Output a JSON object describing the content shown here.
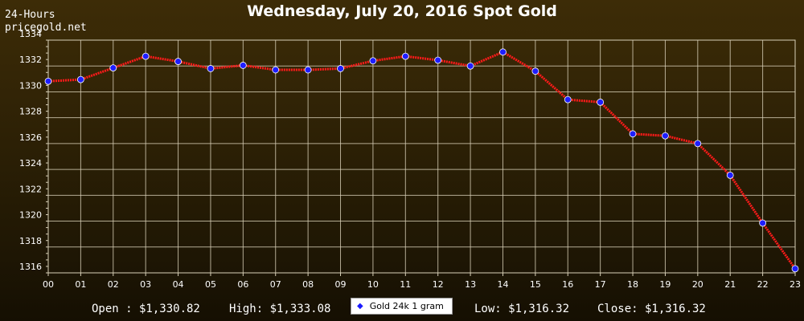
{
  "header": {
    "left_line1": "24-Hours",
    "left_line2": "pricegold.net"
  },
  "summary": {
    "open": "Open : $1,330.82",
    "high": "High: $1,333.08",
    "low": "Low: $1,316.32",
    "close": "Close: $1,316.32"
  },
  "colors": {
    "line": "#ff1a1a",
    "marker_fill": "#1e1eff",
    "grid": "#d8d0b8"
  },
  "chart_data": {
    "type": "line",
    "title": "Wednesday, July 20, 2016 Spot Gold",
    "xlabel": "",
    "ylabel": "",
    "categories": [
      "00",
      "01",
      "02",
      "03",
      "04",
      "05",
      "06",
      "07",
      "08",
      "09",
      "10",
      "11",
      "12",
      "13",
      "14",
      "15",
      "16",
      "17",
      "18",
      "19",
      "20",
      "21",
      "22",
      "23"
    ],
    "ylim": [
      1316,
      1334
    ],
    "yticks": [
      1316,
      1318,
      1320,
      1322,
      1324,
      1326,
      1328,
      1330,
      1332,
      1334
    ],
    "grid": true,
    "legend": "bottom-center",
    "series": [
      {
        "name": "Gold 24k 1 gram",
        "values": [
          1330.82,
          1330.95,
          1331.85,
          1332.75,
          1332.35,
          1331.8,
          1332.05,
          1331.7,
          1331.7,
          1331.8,
          1332.4,
          1332.75,
          1332.45,
          1332.0,
          1333.08,
          1331.6,
          1329.4,
          1329.2,
          1326.75,
          1326.6,
          1326.0,
          1323.55,
          1319.85,
          1316.32
        ]
      }
    ]
  }
}
